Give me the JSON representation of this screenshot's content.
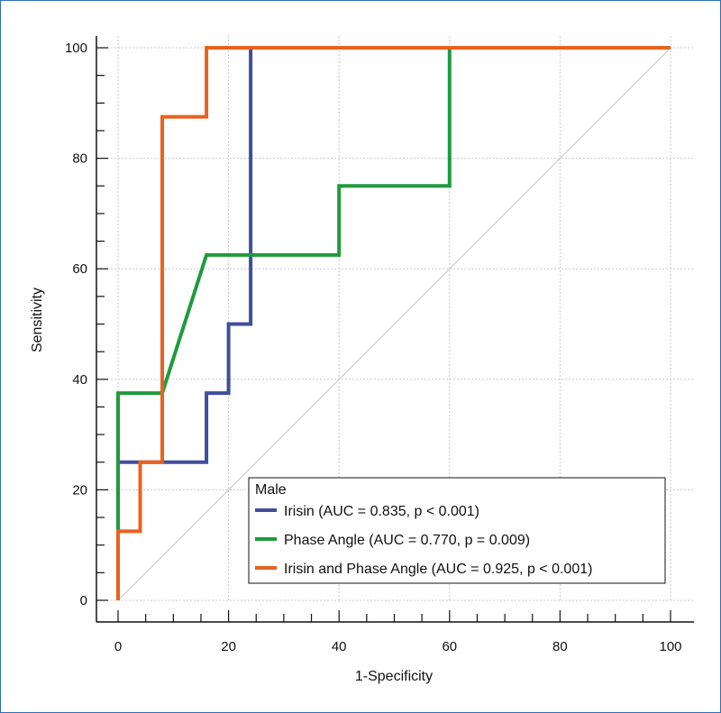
{
  "chart_data": {
    "type": "line",
    "xlabel": "1-Specificity",
    "ylabel": "Sensitivity",
    "xlim": [
      0,
      100
    ],
    "ylim": [
      0,
      100
    ],
    "xticks": [
      0,
      20,
      40,
      60,
      80,
      100
    ],
    "yticks": [
      0,
      20,
      40,
      60,
      80,
      100
    ],
    "grid": true,
    "reference_line": {
      "x": [
        0,
        100
      ],
      "y": [
        0,
        100
      ]
    },
    "legend": {
      "title": "Male",
      "placement": "bottom-right"
    },
    "series": [
      {
        "name": "Irisin (AUC = 0.835, p < 0.001)",
        "color": "#3f4e9e",
        "points": [
          [
            0,
            0
          ],
          [
            0,
            25
          ],
          [
            16,
            25
          ],
          [
            16,
            37.5
          ],
          [
            20,
            37.5
          ],
          [
            20,
            50
          ],
          [
            24,
            50
          ],
          [
            24,
            100
          ],
          [
            100,
            100
          ]
        ]
      },
      {
        "name": "Phase Angle (AUC = 0.770, p = 0.009)",
        "color": "#1f9a3c",
        "points": [
          [
            0,
            0
          ],
          [
            0,
            37.5
          ],
          [
            8,
            37.5
          ],
          [
            16,
            62.5
          ],
          [
            40,
            62.5
          ],
          [
            40,
            75
          ],
          [
            60,
            75
          ],
          [
            60,
            100
          ],
          [
            100,
            100
          ]
        ]
      },
      {
        "name": "Irisin and Phase Angle (AUC = 0.925, p < 0.001)",
        "color": "#e8621e",
        "points": [
          [
            0,
            0
          ],
          [
            0,
            12.5
          ],
          [
            4,
            12.5
          ],
          [
            4,
            25
          ],
          [
            8,
            25
          ],
          [
            8,
            87.5
          ],
          [
            16,
            87.5
          ],
          [
            16,
            100
          ],
          [
            100,
            100
          ]
        ]
      }
    ]
  }
}
